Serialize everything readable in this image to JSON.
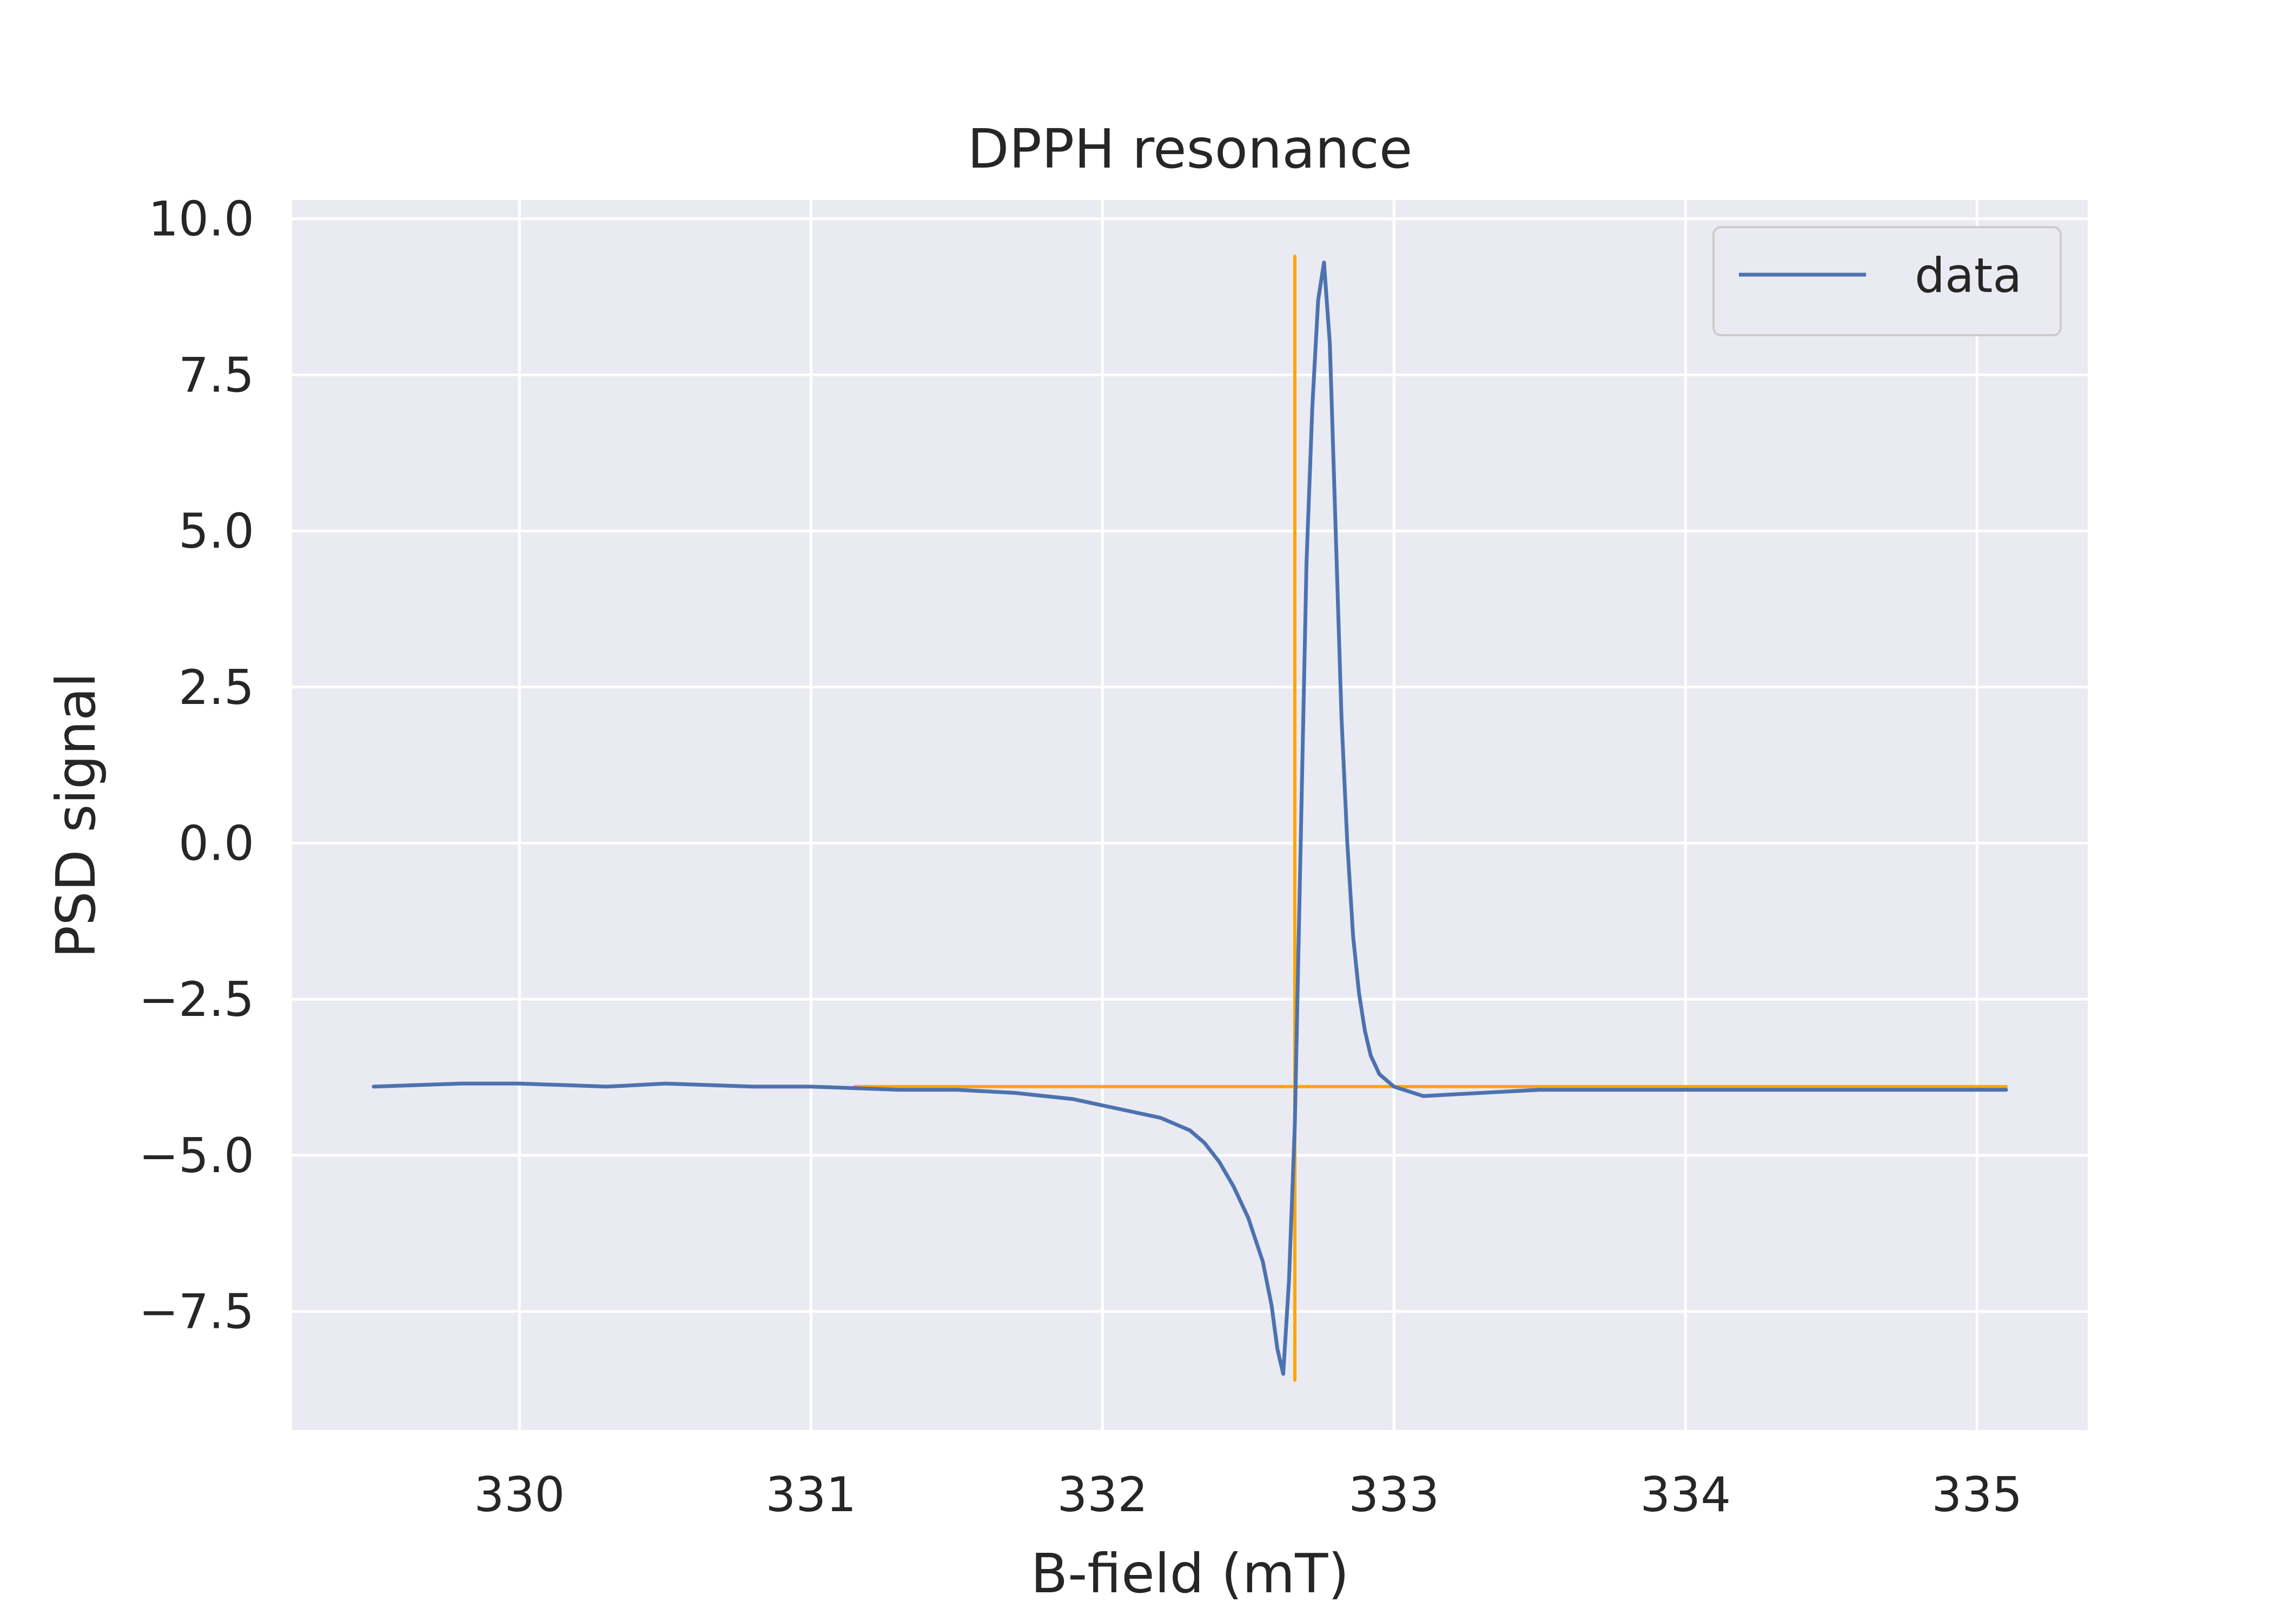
{
  "chart_data": {
    "type": "line",
    "title": "DPPH resonance",
    "xlabel": "B-field (mT)",
    "ylabel": "PSD signal",
    "xlim": [
      329.22,
      335.38
    ],
    "ylim": [
      -9.4,
      10.3
    ],
    "xticks": [
      330,
      331,
      332,
      333,
      334,
      335
    ],
    "xtick_labels": [
      "330",
      "331",
      "332",
      "333",
      "334",
      "335"
    ],
    "yticks": [
      -7.5,
      -5.0,
      -2.5,
      0.0,
      2.5,
      5.0,
      7.5,
      10.0
    ],
    "ytick_labels": [
      "−7.5",
      "−5.0",
      "−2.5",
      "0.0",
      "2.5",
      "5.0",
      "7.5",
      "10.0"
    ],
    "grid": true,
    "background": "#eaeaf2",
    "legend": {
      "position": "top-right",
      "entries": [
        "data"
      ]
    },
    "series": [
      {
        "name": "data",
        "color": "#4c72b0",
        "x": [
          329.5,
          329.8,
          330.0,
          330.3,
          330.5,
          330.8,
          331.0,
          331.3,
          331.5,
          331.7,
          331.9,
          332.0,
          332.1,
          332.2,
          332.3,
          332.35,
          332.4,
          332.45,
          332.5,
          332.55,
          332.58,
          332.6,
          332.62,
          332.64,
          332.66,
          332.68,
          332.7,
          332.72,
          332.74,
          332.76,
          332.78,
          332.8,
          332.82,
          332.84,
          332.86,
          332.88,
          332.9,
          332.92,
          332.95,
          333.0,
          333.1,
          333.3,
          333.5,
          333.8,
          334.0,
          334.3,
          334.5,
          334.8,
          335.0,
          335.1
        ],
        "y": [
          -3.9,
          -3.85,
          -3.85,
          -3.9,
          -3.85,
          -3.9,
          -3.9,
          -3.95,
          -3.95,
          -4.0,
          -4.1,
          -4.2,
          -4.3,
          -4.4,
          -4.6,
          -4.8,
          -5.1,
          -5.5,
          -6.0,
          -6.7,
          -7.4,
          -8.1,
          -8.5,
          -7.0,
          -4.5,
          0.0,
          4.5,
          7.0,
          8.7,
          9.3,
          8.0,
          5.0,
          2.0,
          0.0,
          -1.5,
          -2.4,
          -3.0,
          -3.4,
          -3.7,
          -3.9,
          -4.05,
          -4.0,
          -3.95,
          -3.95,
          -3.95,
          -3.95,
          -3.95,
          -3.95,
          -3.95,
          -3.95
        ]
      },
      {
        "name": "",
        "color": "#ffa500",
        "x": [
          331.15,
          332.66,
          332.66,
          332.66,
          332.66,
          335.1
        ],
        "y": [
          -3.9,
          -3.9,
          -8.6,
          9.4,
          -3.9,
          -3.9
        ]
      }
    ]
  }
}
